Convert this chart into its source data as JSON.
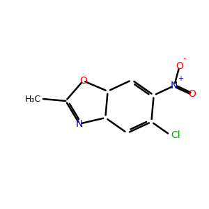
{
  "background_color": "#ffffff",
  "bond_color": "#000000",
  "bond_width": 1.8,
  "atom_colors": {
    "O": "#ff0000",
    "N": "#0000cc",
    "Cl": "#00aa00",
    "C": "#000000"
  },
  "font_size": 10,
  "figsize": [
    3.0,
    3.0
  ],
  "dpi": 100,
  "xlim": [
    0,
    10
  ],
  "ylim": [
    0,
    10
  ]
}
